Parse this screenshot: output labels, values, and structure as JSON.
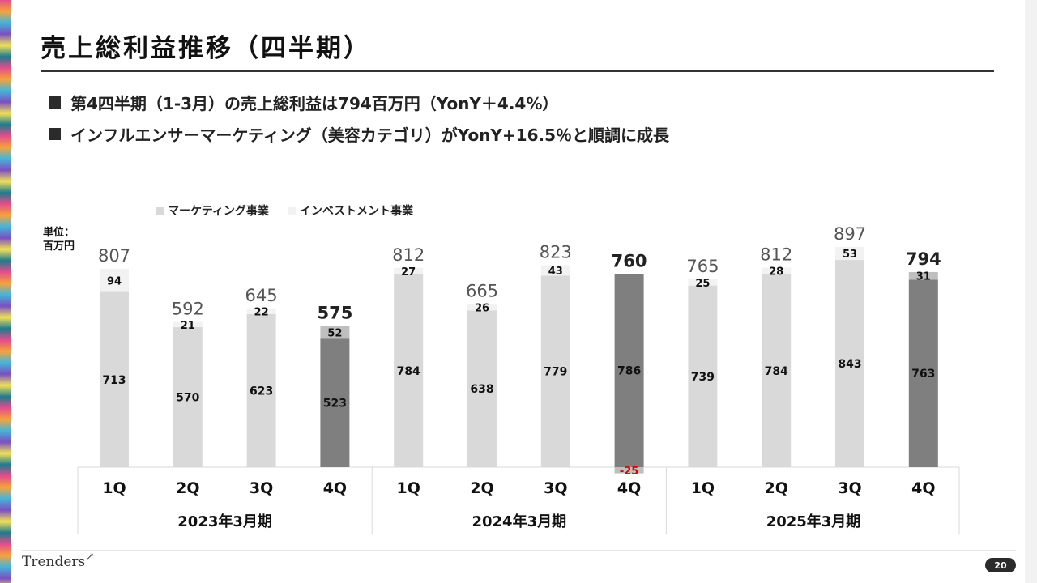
{
  "slide": {
    "title": "売上総利益推移（四半期）",
    "bullets": [
      "第4四半期（1-3月）の売上総利益は794百万円（YonY＋4.4%）",
      "インフルエンサーマーケティング（美容カテゴリ）がYonY+16.5％と順調に成長"
    ],
    "unit_label_line1": "単位：",
    "unit_label_line2": "百万円",
    "logo_text": "Trenders",
    "page_number": "20"
  },
  "colors": {
    "marketing": "#d9d9d9",
    "marketing_highlight": "#7f7f7f",
    "investment": "#f2f2f2",
    "investment_highlight": "#bfbfbf",
    "negative_label": "#e00000"
  },
  "chart_data": {
    "type": "bar",
    "stacked": true,
    "legend": [
      "マーケティング事業",
      "インベストメント事業"
    ],
    "legend_position": "top-left",
    "categories": [
      "1Q",
      "2Q",
      "3Q",
      "4Q",
      "1Q",
      "2Q",
      "3Q",
      "4Q",
      "1Q",
      "2Q",
      "3Q",
      "4Q"
    ],
    "groups": [
      "2023年3月期",
      "2024年3月期",
      "2025年3月期"
    ],
    "series": [
      {
        "name": "マーケティング事業",
        "values": [
          713,
          570,
          623,
          523,
          784,
          638,
          779,
          786,
          739,
          784,
          843,
          763
        ]
      },
      {
        "name": "インベストメント事業",
        "values": [
          94,
          21,
          22,
          52,
          27,
          26,
          43,
          -25,
          25,
          28,
          53,
          31
        ]
      }
    ],
    "totals": [
      807,
      592,
      645,
      575,
      812,
      665,
      823,
      760,
      765,
      812,
      897,
      794
    ],
    "highlighted_quarters": [
      3,
      7,
      11
    ],
    "ylim": [
      -40,
      900
    ]
  }
}
